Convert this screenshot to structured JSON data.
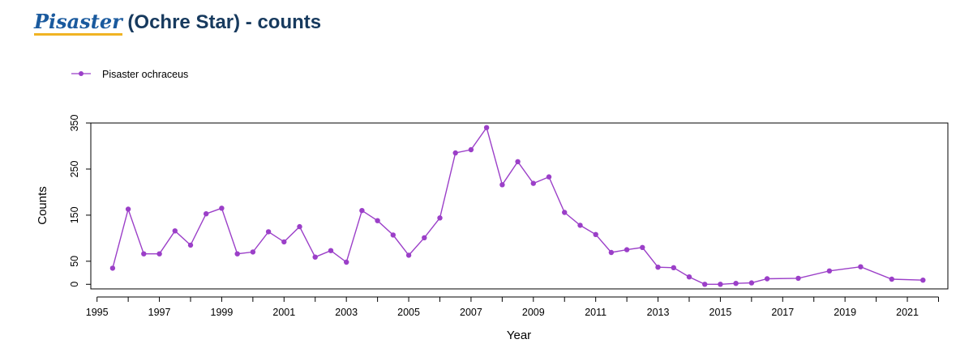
{
  "header": {
    "title_italic": "Pisaster",
    "title_rest": " (Ochre Star) - counts"
  },
  "colors": {
    "series": "#9b3fc8",
    "title": "#173a5e",
    "title_link": "#1a5a9e",
    "underline": "#f0b323"
  },
  "chart_data": {
    "type": "line",
    "title": "",
    "xlabel": "Year",
    "ylabel": "Counts",
    "xlim": [
      1994.8,
      2022.3
    ],
    "ylim": [
      -10,
      350
    ],
    "x_ticks": [
      1995,
      1996,
      1997,
      1998,
      1999,
      2000,
      2001,
      2002,
      2003,
      2004,
      2005,
      2006,
      2007,
      2008,
      2009,
      2010,
      2011,
      2012,
      2013,
      2014,
      2015,
      2016,
      2017,
      2018,
      2019,
      2020,
      2021,
      2022
    ],
    "x_tick_labels": [
      "1995",
      "",
      "1997",
      "",
      "1999",
      "",
      "2001",
      "",
      "2003",
      "",
      "2005",
      "",
      "2007",
      "",
      "2009",
      "",
      "2011",
      "",
      "2013",
      "",
      "2015",
      "",
      "2017",
      "",
      "2019",
      "",
      "2021",
      ""
    ],
    "y_ticks": [
      0,
      50,
      150,
      250,
      350
    ],
    "y_tick_labels": [
      "0",
      "50",
      "150",
      "250",
      "350"
    ],
    "legend_position": "top-left",
    "grid": false,
    "series": [
      {
        "name": "Pisaster ochraceus",
        "color": "#9b3fc8",
        "x": [
          1995.5,
          1996.0,
          1996.5,
          1997.0,
          1997.5,
          1998.0,
          1998.5,
          1999.0,
          1999.5,
          2000.0,
          2000.5,
          2001.0,
          2001.5,
          2002.0,
          2002.5,
          2003.0,
          2003.5,
          2004.0,
          2004.5,
          2005.0,
          2005.5,
          2006.0,
          2006.5,
          2007.0,
          2007.5,
          2008.0,
          2008.5,
          2009.0,
          2009.5,
          2010.0,
          2010.5,
          2011.0,
          2011.5,
          2012.0,
          2012.5,
          2013.0,
          2013.5,
          2014.0,
          2014.5,
          2015.0,
          2015.5,
          2016.0,
          2016.5,
          2017.5,
          2018.5,
          2019.5,
          2020.5,
          2021.5
        ],
        "y": [
          35,
          163,
          66,
          66,
          116,
          85,
          153,
          165,
          66,
          70,
          114,
          92,
          125,
          59,
          73,
          48,
          160,
          138,
          107,
          63,
          101,
          144,
          285,
          292,
          340,
          216,
          266,
          219,
          233,
          156,
          128,
          108,
          69,
          75,
          80,
          37,
          36,
          16,
          0,
          0,
          2,
          3,
          12,
          13,
          29,
          38,
          11,
          9
        ]
      }
    ]
  }
}
